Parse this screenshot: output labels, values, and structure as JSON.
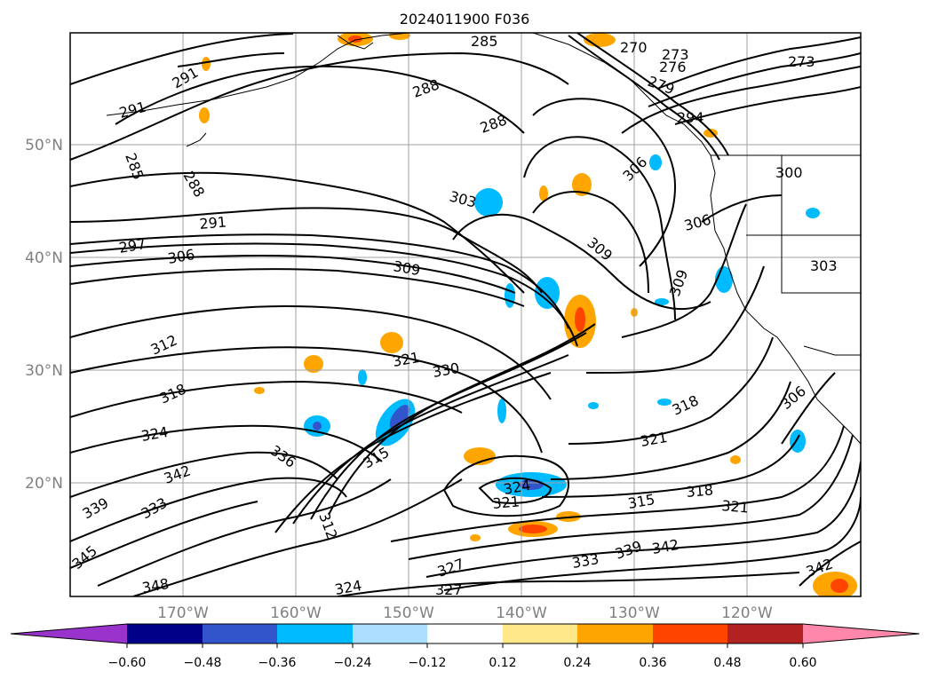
{
  "title": "2024011900 F036",
  "lat_labels": [
    "50°N",
    "40°N",
    "30°N",
    "20°N"
  ],
  "lon_labels": [
    "170°W",
    "160°W",
    "150°W",
    "140°W",
    "130°W",
    "120°W"
  ],
  "colorbar": {
    "ticks": [
      "−0.60",
      "−0.48",
      "−0.36",
      "−0.24",
      "−0.12",
      "0.12",
      "0.24",
      "0.36",
      "0.48",
      "0.60"
    ],
    "colors": [
      "#9933cc",
      "#000088",
      "#3355cc",
      "#00bbff",
      "#aaddff",
      "#ffffff",
      "#ffe88a",
      "#ffa500",
      "#ff4400",
      "#b22222",
      "#ff88aa"
    ]
  },
  "contour_labels": [
    "285",
    "270",
    "273",
    "276",
    "279",
    "273",
    "291",
    "291",
    "288",
    "288",
    "285",
    "288",
    "294",
    "291",
    "297",
    "306",
    "303",
    "306",
    "306",
    "309",
    "309",
    "309",
    "300",
    "303",
    "312",
    "321",
    "330",
    "318",
    "318",
    "324",
    "321",
    "336",
    "342",
    "339",
    "333",
    "315",
    "312",
    "324",
    "321",
    "315",
    "318",
    "321",
    "327",
    "327",
    "345",
    "348",
    "333",
    "339",
    "342",
    "342",
    "324",
    "306"
  ],
  "contour_color": "#000000"
}
